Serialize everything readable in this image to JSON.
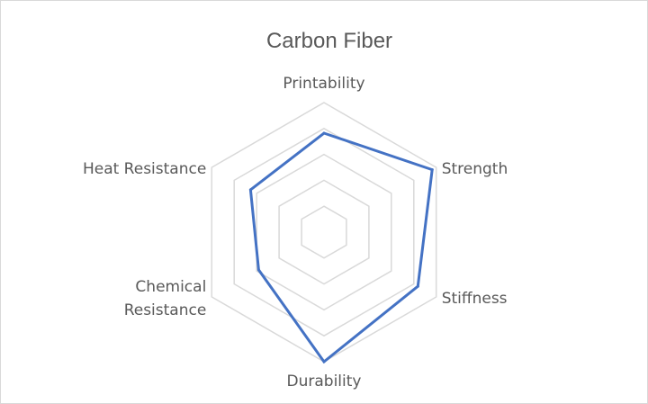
{
  "chart_data": {
    "type": "radar",
    "title": "Carbon Fiber",
    "categories": [
      "Printability",
      "Strength",
      "Stiffness",
      "Durability",
      "Chemical Resistance",
      "Heat Resistance"
    ],
    "category_lines": [
      [
        "Printability"
      ],
      [
        "Strength"
      ],
      [
        "Stiffness"
      ],
      [
        "Durability"
      ],
      [
        "Chemical",
        "Resistance"
      ],
      [
        "Heat Resistance"
      ]
    ],
    "series": [
      {
        "values": [
          4.2,
          5.3,
          4.6,
          5.5,
          3.2,
          3.6
        ],
        "color": "#4472c4"
      }
    ],
    "rlim": [
      0,
      5.5
    ],
    "grid_levels": [
      1.1,
      2.2,
      3.3,
      4.4,
      5.5
    ],
    "grid_color": "#d9d9d9",
    "legend": false
  }
}
